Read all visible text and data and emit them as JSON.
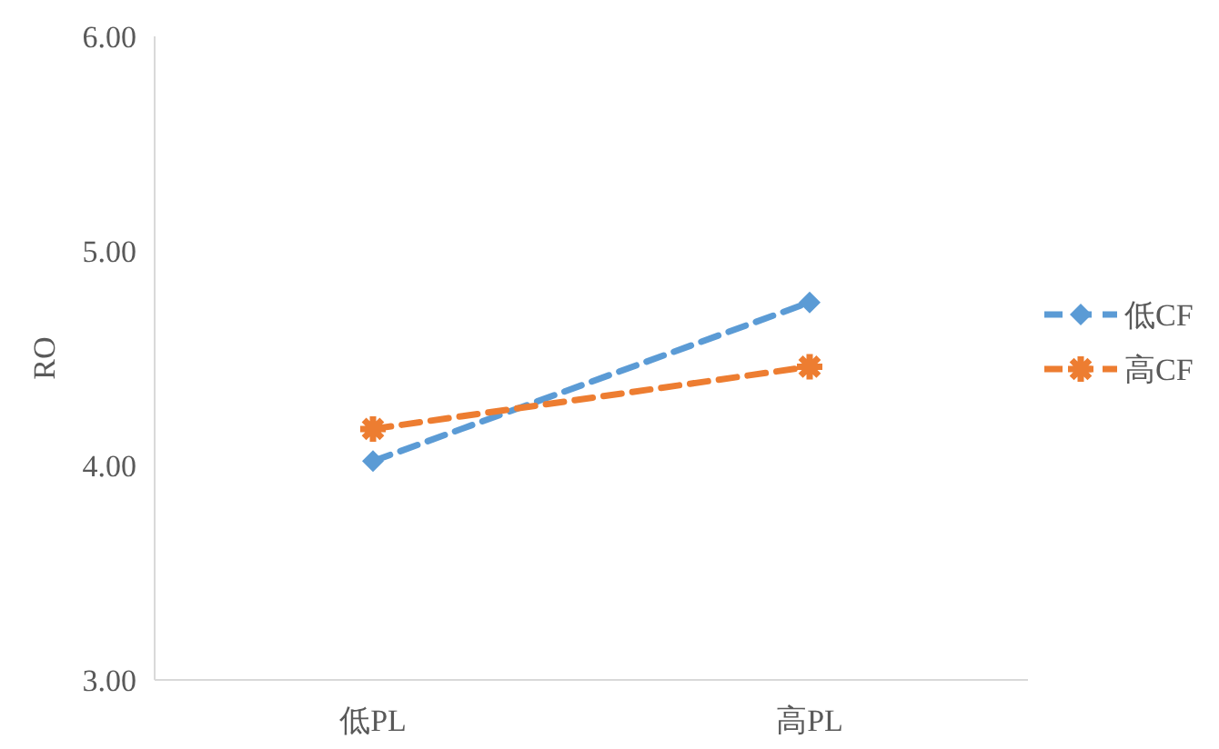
{
  "chart_data": {
    "type": "line",
    "ylabel": "RO",
    "categories": [
      "低PL",
      "高PL"
    ],
    "series": [
      {
        "name": "低CF",
        "color": "#5b9bd5",
        "values": [
          4.02,
          4.76
        ],
        "marker": "diamond",
        "line_style": "dashed"
      },
      {
        "name": "高CF",
        "color": "#ed7d31",
        "values": [
          4.17,
          4.46
        ],
        "marker": "cross",
        "line_style": "dashed"
      }
    ],
    "ylim": [
      3,
      6
    ],
    "yticks": [
      {
        "value": 3,
        "label": "3.00"
      },
      {
        "value": 4,
        "label": "4.00"
      },
      {
        "value": 5,
        "label": "5.00"
      },
      {
        "value": 6,
        "label": "6.00"
      }
    ],
    "grid": false,
    "legend": "right"
  }
}
